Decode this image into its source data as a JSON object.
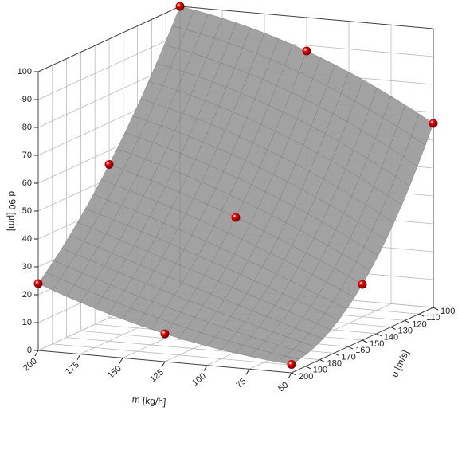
{
  "chart_data": {
    "type": "surface3d",
    "xlabel": "m [kg/h]",
    "ylabel": "u [m/s]",
    "zlabel": "d 90 [μm]",
    "xlim": [
      50,
      200
    ],
    "xticks": [
      50,
      75,
      100,
      125,
      150,
      175,
      200
    ],
    "ylim": [
      100,
      200
    ],
    "yticks": [
      100,
      110,
      120,
      130,
      140,
      150,
      160,
      170,
      180,
      190,
      200
    ],
    "zlim": [
      0,
      100
    ],
    "zticks": [
      0,
      10,
      20,
      30,
      40,
      50,
      60,
      70,
      80,
      90,
      100
    ],
    "grid": true,
    "surface_color": "#9a9a9a",
    "series": [
      {
        "name": "d 90",
        "color": "#e00000",
        "x": [
          200,
          125,
          50,
          200,
          125,
          50,
          200,
          125,
          50
        ],
        "y": [
          100,
          100,
          100,
          150,
          150,
          150,
          200,
          200,
          200
        ],
        "z": [
          100,
          88,
          66,
          55,
          40,
          20,
          24,
          10,
          3
        ]
      }
    ]
  }
}
